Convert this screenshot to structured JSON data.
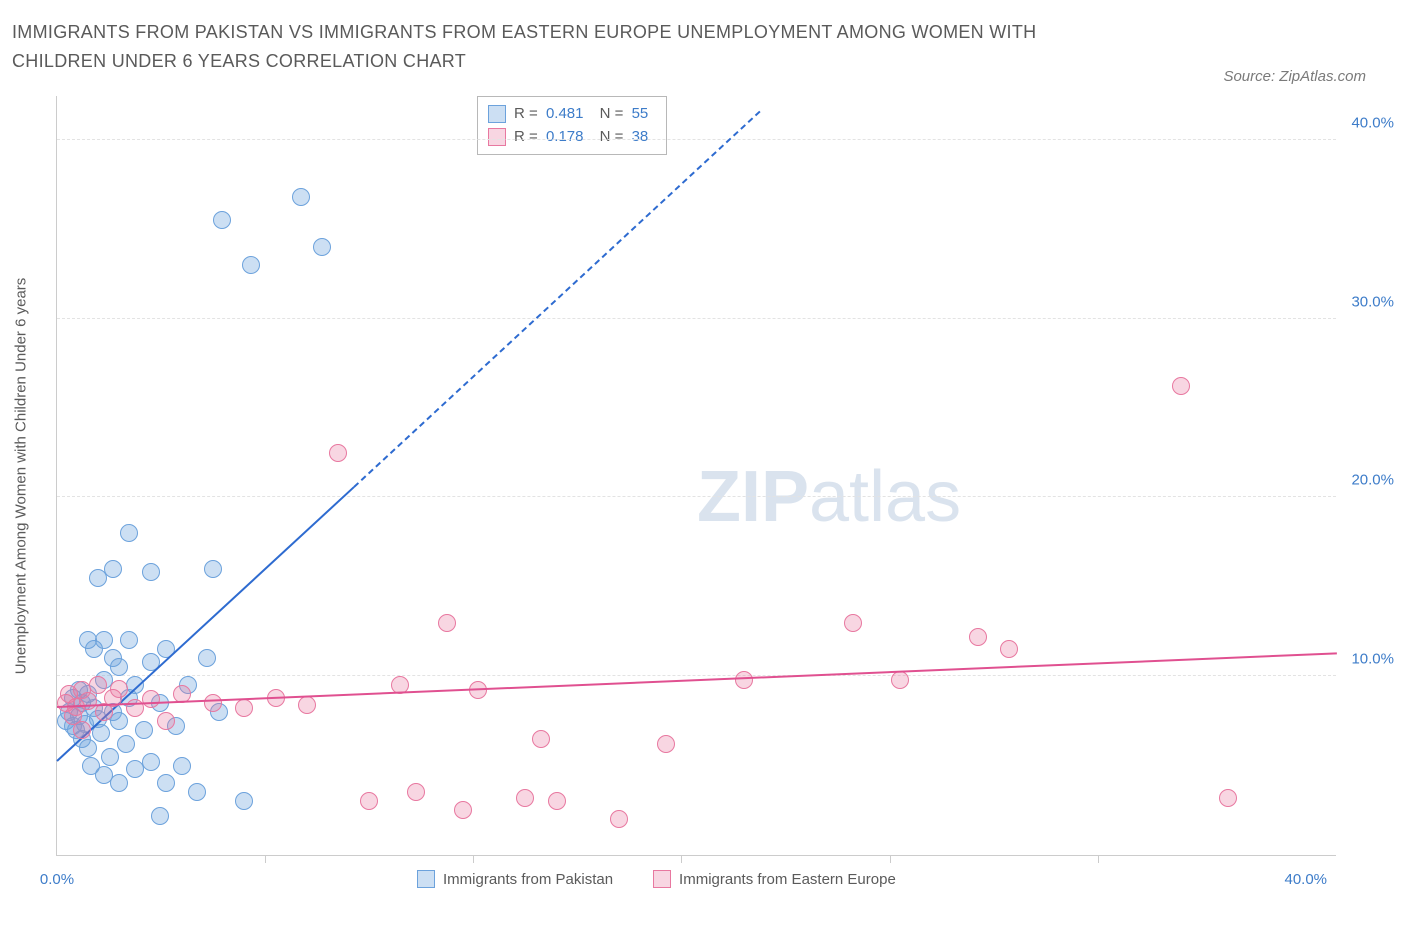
{
  "title": "IMMIGRANTS FROM PAKISTAN VS IMMIGRANTS FROM EASTERN EUROPE UNEMPLOYMENT AMONG WOMEN WITH CHILDREN UNDER 6 YEARS CORRELATION CHART",
  "source_label": "Source: ZipAtlas.com",
  "y_axis_label": "Unemployment Among Women with Children Under 6 years",
  "watermark_bold": "ZIP",
  "watermark_rest": "atlas",
  "chart": {
    "type": "scatter",
    "xlim": [
      0,
      41
    ],
    "ylim": [
      0,
      42.5
    ],
    "x_ticks": [
      0,
      40
    ],
    "x_tick_labels": [
      "0.0%",
      "40.0%"
    ],
    "x_minor_ticks": [
      6.67,
      13.33,
      20,
      26.67,
      33.33
    ],
    "y_ticks": [
      10,
      20,
      30,
      40
    ],
    "y_tick_labels": [
      "10.0%",
      "20.0%",
      "30.0%",
      "40.0%"
    ],
    "background_color": "#ffffff",
    "grid_color": "#e3e3e3",
    "axis_color": "#cccccc",
    "tick_label_color": "#3d7cc9",
    "series": [
      {
        "name": "Immigrants from Pakistan",
        "color_fill": "rgba(108,162,220,0.35)",
        "color_stroke": "#6ca2dc",
        "marker_radius": 9,
        "trend_color": "#2e6bd0",
        "trend_from": [
          0,
          5.2
        ],
        "trend_solid_to": [
          9.5,
          20.5
        ],
        "trend_dash_to": [
          22.5,
          41.5
        ],
        "R": "0.481",
        "N": "55",
        "points": [
          [
            0.3,
            7.5
          ],
          [
            0.4,
            8.0
          ],
          [
            0.5,
            7.2
          ],
          [
            0.5,
            8.8
          ],
          [
            0.6,
            7.0
          ],
          [
            0.7,
            7.8
          ],
          [
            0.7,
            9.2
          ],
          [
            0.8,
            6.5
          ],
          [
            0.8,
            8.5
          ],
          [
            0.9,
            7.3
          ],
          [
            1.0,
            6.0
          ],
          [
            1.0,
            9.0
          ],
          [
            1.0,
            12.0
          ],
          [
            1.1,
            5.0
          ],
          [
            1.2,
            8.2
          ],
          [
            1.2,
            11.5
          ],
          [
            1.3,
            7.6
          ],
          [
            1.3,
            15.5
          ],
          [
            1.4,
            6.8
          ],
          [
            1.5,
            4.5
          ],
          [
            1.5,
            9.8
          ],
          [
            1.5,
            12.0
          ],
          [
            1.7,
            5.5
          ],
          [
            1.8,
            8.0
          ],
          [
            1.8,
            11.0
          ],
          [
            1.8,
            16.0
          ],
          [
            2.0,
            4.0
          ],
          [
            2.0,
            7.5
          ],
          [
            2.0,
            10.5
          ],
          [
            2.2,
            6.2
          ],
          [
            2.3,
            8.8
          ],
          [
            2.3,
            12.0
          ],
          [
            2.3,
            18.0
          ],
          [
            2.5,
            4.8
          ],
          [
            2.5,
            9.5
          ],
          [
            2.8,
            7.0
          ],
          [
            3.0,
            5.2
          ],
          [
            3.0,
            10.8
          ],
          [
            3.0,
            15.8
          ],
          [
            3.3,
            2.2
          ],
          [
            3.3,
            8.5
          ],
          [
            3.5,
            4.0
          ],
          [
            3.5,
            11.5
          ],
          [
            3.8,
            7.2
          ],
          [
            4.0,
            5.0
          ],
          [
            4.2,
            9.5
          ],
          [
            4.5,
            3.5
          ],
          [
            4.8,
            11.0
          ],
          [
            5.0,
            16.0
          ],
          [
            5.2,
            8.0
          ],
          [
            5.3,
            35.5
          ],
          [
            6.0,
            3.0
          ],
          [
            6.2,
            33.0
          ],
          [
            7.8,
            36.8
          ],
          [
            8.5,
            34.0
          ]
        ]
      },
      {
        "name": "Immigrants from Eastern Europe",
        "color_fill": "rgba(232,120,160,0.30)",
        "color_stroke": "#e878a0",
        "marker_radius": 9,
        "trend_color": "#e05090",
        "trend_from": [
          0,
          8.2
        ],
        "trend_solid_to": [
          41,
          11.2
        ],
        "R": "0.178",
        "N": "38",
        "points": [
          [
            0.3,
            8.5
          ],
          [
            0.4,
            9.0
          ],
          [
            0.5,
            7.8
          ],
          [
            0.6,
            8.3
          ],
          [
            0.8,
            9.2
          ],
          [
            0.8,
            7.0
          ],
          [
            1.0,
            8.6
          ],
          [
            1.3,
            9.5
          ],
          [
            1.5,
            8.0
          ],
          [
            1.8,
            8.8
          ],
          [
            2.0,
            9.3
          ],
          [
            2.5,
            8.2
          ],
          [
            3.0,
            8.7
          ],
          [
            3.5,
            7.5
          ],
          [
            4.0,
            9.0
          ],
          [
            5.0,
            8.5
          ],
          [
            6.0,
            8.2
          ],
          [
            7.0,
            8.8
          ],
          [
            8.0,
            8.4
          ],
          [
            9.0,
            22.5
          ],
          [
            10.0,
            3.0
          ],
          [
            11.0,
            9.5
          ],
          [
            11.5,
            3.5
          ],
          [
            12.5,
            13.0
          ],
          [
            13.0,
            2.5
          ],
          [
            13.5,
            9.2
          ],
          [
            15.0,
            3.2
          ],
          [
            15.5,
            6.5
          ],
          [
            16.0,
            3.0
          ],
          [
            18.0,
            2.0
          ],
          [
            19.5,
            6.2
          ],
          [
            22.0,
            9.8
          ],
          [
            25.5,
            13.0
          ],
          [
            27.0,
            9.8
          ],
          [
            29.5,
            12.2
          ],
          [
            30.5,
            11.5
          ],
          [
            36.0,
            26.2
          ],
          [
            37.5,
            3.2
          ]
        ]
      }
    ]
  },
  "legend": {
    "series1_label": "Immigrants from Pakistan",
    "series2_label": "Immigrants from Eastern Europe"
  }
}
